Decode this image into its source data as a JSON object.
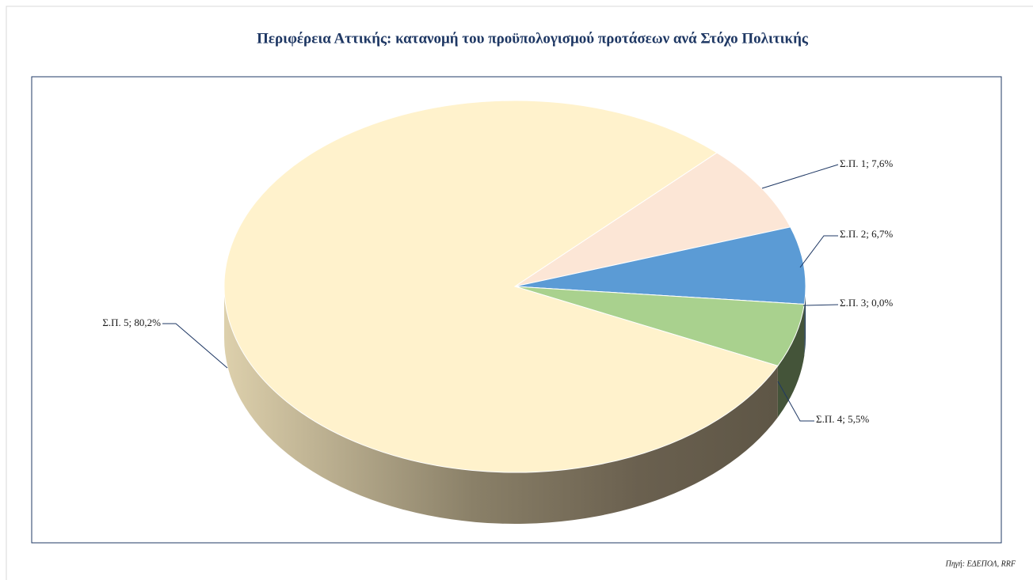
{
  "chart_data": {
    "type": "pie",
    "title": "Περιφέρεια Αττικής: κατανομή του προϋπολογισμού προτάσεων ανά Στόχο Πολιτικής",
    "values": [
      7.6,
      6.7,
      0.0,
      5.5,
      80.2
    ],
    "value_labels": [
      "Σ.Π. 1; 7,6%",
      "Σ.Π. 2; 6,7%",
      "Σ.Π. 3; 0,0%",
      "Σ.Π. 4; 5,5%",
      "Σ.Π. 5; 80,2%"
    ],
    "colors": [
      "#fce6d6",
      "#5b9bd5",
      "#e06666",
      "#a9d18e",
      "#fff2cc"
    ],
    "source": "Πηγή: ΕΔΕΠΟΛ, RRF"
  }
}
